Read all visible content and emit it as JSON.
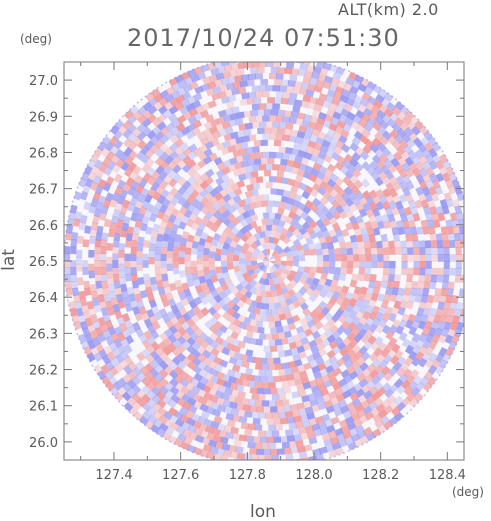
{
  "header": {
    "alt_label": "ALT(km) 2.0",
    "timestamp": "2017/10/24 07:51:30"
  },
  "colors": {
    "positive": "#f08c8c",
    "negative": "#8c8cf0",
    "frame": "#777777"
  },
  "chart_data": {
    "type": "heatmap",
    "title": "2017/10/24 07:51:30",
    "subtitle": "ALT(km) 2.0",
    "xlabel": "lon",
    "ylabel": "lat",
    "x_unit": "(deg)",
    "y_unit": "(deg)",
    "xlim": [
      127.25,
      128.45
    ],
    "ylim": [
      25.95,
      27.05
    ],
    "x_ticks": [
      {
        "value": 127.4,
        "label": "127.4"
      },
      {
        "value": 127.6,
        "label": "127.6"
      },
      {
        "value": 127.8,
        "label": "127.8"
      },
      {
        "value": 128.0,
        "label": "128.0"
      },
      {
        "value": 128.2,
        "label": "128.2"
      },
      {
        "value": 128.4,
        "label": "128.4"
      }
    ],
    "y_ticks": [
      {
        "value": 26.0,
        "label": "26.0"
      },
      {
        "value": 26.1,
        "label": "26.1"
      },
      {
        "value": 26.2,
        "label": "26.2"
      },
      {
        "value": 26.3,
        "label": "26.3"
      },
      {
        "value": 26.4,
        "label": "26.4"
      },
      {
        "value": 26.5,
        "label": "26.5"
      },
      {
        "value": 26.6,
        "label": "26.6"
      },
      {
        "value": 26.7,
        "label": "26.7"
      },
      {
        "value": 26.8,
        "label": "26.8"
      },
      {
        "value": 26.9,
        "label": "26.9"
      },
      {
        "value": 27.0,
        "label": "27.0"
      }
    ],
    "radar_center": {
      "lon": 127.865,
      "lat": 26.5
    },
    "radar_range_deg": {
      "lon": 0.615,
      "lat": 0.57
    },
    "color_scale": "diverging red-white-blue (no legend shown)",
    "grid": false
  }
}
